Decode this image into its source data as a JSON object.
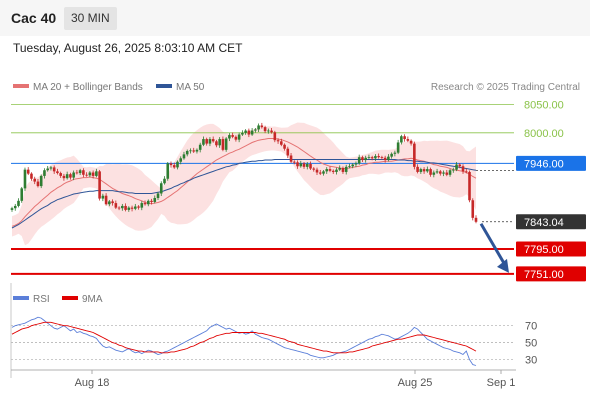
{
  "header": {
    "instrument": "Cac 40",
    "interval": "30 MIN",
    "datetime": "Tuesday, August 26, 2025 8:03:10 AM CET"
  },
  "legend": {
    "ma20_label": "MA 20 + Bollinger Bands",
    "ma50_label": "MA 50",
    "source": "Research © 2025 Trading Central",
    "rsi_label": "RSI",
    "rsi_ma_label": "9MA"
  },
  "colors": {
    "up_candle": "#2e7d32",
    "down_candle": "#c62828",
    "ma20": "#e57373",
    "ma50": "#2f5597",
    "band_fill": "#fcdcdc",
    "resistance": "#8bc34a",
    "pivot": "#1a73e8",
    "support": "#e00000",
    "current": "#333333",
    "arrow": "#2f5597",
    "rsi": "#5b7fd9",
    "rsi_ma": "#e00000"
  },
  "chart_data": [
    {
      "type": "candlestick",
      "panel": "price",
      "x_labels": [
        "Aug 18",
        "Aug 25",
        "Sep 1"
      ],
      "ylim": [
        7735,
        8065
      ],
      "levels": [
        {
          "label": "8050.00",
          "value": 8050,
          "kind": "resistance"
        },
        {
          "label": "8000.00",
          "value": 8000,
          "kind": "resistance"
        },
        {
          "label": "7946.00",
          "value": 7946,
          "kind": "pivot"
        },
        {
          "label": "7843.04",
          "value": 7843.04,
          "kind": "current"
        },
        {
          "label": "7795.00",
          "value": 7795,
          "kind": "support"
        },
        {
          "label": "7751.00",
          "value": 7751,
          "kind": "support"
        }
      ],
      "close": [
        7867,
        7871,
        7880,
        7902,
        7935,
        7928,
        7919,
        7914,
        7906,
        7924,
        7934,
        7937,
        7939,
        7932,
        7929,
        7924,
        7920,
        7927,
        7921,
        7930,
        7929,
        7934,
        7926,
        7925,
        7930,
        7924,
        7932,
        7884,
        7889,
        7874,
        7879,
        7876,
        7868,
        7867,
        7871,
        7864,
        7868,
        7866,
        7870,
        7868,
        7876,
        7874,
        7880,
        7878,
        7885,
        7893,
        7911,
        7919,
        7946,
        7943,
        7939,
        7949,
        7955,
        7962,
        7968,
        7969,
        7967,
        7970,
        7979,
        7989,
        7981,
        7989,
        7985,
        7978,
        7989,
        7970,
        7990,
        7996,
        7993,
        7988,
        7997,
        8000,
        8004,
        7997,
        8004,
        8006,
        8013,
        8010,
        8003,
        8004,
        8001,
        7987,
        7985,
        7979,
        7972,
        7960,
        7949,
        7948,
        7941,
        7946,
        7940,
        7945,
        7937,
        7935,
        7930,
        7928,
        7932,
        7936,
        7933,
        7931,
        7935,
        7938,
        7931,
        7940,
        7941,
        7944,
        7946,
        7957,
        7952,
        7956,
        7957,
        7955,
        7959,
        7957,
        7956,
        7952,
        7958,
        7963,
        7965,
        7983,
        7994,
        7989,
        7986,
        7981,
        7940,
        7931,
        7936,
        7932,
        7936,
        7926,
        7930,
        7932,
        7928,
        7930,
        7926,
        7934,
        7935,
        7944,
        7941,
        7932,
        7931,
        7881,
        7850,
        7843
      ],
      "series": [
        {
          "name": "MA 20 + Bollinger Bands",
          "values": [
            7835,
            7837,
            7840,
            7845,
            7852,
            7858,
            7864,
            7870,
            7875,
            7880,
            7885,
            7890,
            7895,
            7899,
            7903,
            7906,
            7910,
            7913,
            7915,
            7918,
            7919,
            7920,
            7921,
            7921,
            7922,
            7921,
            7920,
            7918,
            7914,
            7910,
            7906,
            7902,
            7899,
            7896,
            7893,
            7891,
            7889,
            7887,
            7884,
            7882,
            7880,
            7877,
            7876,
            7875,
            7876,
            7877,
            7879,
            7882,
            7886,
            7890,
            7894,
            7898,
            7903,
            7908,
            7913,
            7918,
            7923,
            7928,
            7932,
            7936,
            7940,
            7944,
            7948,
            7952,
            7955,
            7958,
            7961,
            7964,
            7966,
            7969,
            7971,
            7974,
            7977,
            7980,
            7983,
            7985,
            7987,
            7988,
            7989,
            7990,
            7990,
            7990,
            7989,
            7988,
            7986,
            7984,
            7981,
            7978,
            7975,
            7971,
            7967,
            7963,
            7959,
            7955,
            7952,
            7948,
            7945,
            7943,
            7941,
            7940,
            7939,
            7938,
            7937,
            7937,
            7938,
            7939,
            7940,
            7941,
            7943,
            7944,
            7946,
            7947,
            7948,
            7948,
            7949,
            7950,
            7950,
            7950,
            7951,
            7952,
            7953,
            7954,
            7954,
            7955,
            7954,
            7952,
            7951,
            7950,
            7948,
            7946,
            7944,
            7943,
            7941,
            7940,
            7939,
            7937,
            7935,
            7934,
            7933,
            7932,
            7930,
            7927,
            7923,
            7920
          ]
        },
        {
          "name": "MA 50",
          "values": [
            7832,
            7835,
            7838,
            7842,
            7846,
            7850,
            7854,
            7858,
            7862,
            7866,
            7869,
            7872,
            7876,
            7879,
            7882,
            7884,
            7886,
            7888,
            7890,
            7892,
            7893,
            7894,
            7895,
            7896,
            7897,
            7897,
            7898,
            7898,
            7898,
            7898,
            7898,
            7898,
            7897,
            7896,
            7896,
            7895,
            7894,
            7894,
            7893,
            7893,
            7893,
            7893,
            7893,
            7893,
            7894,
            7895,
            7896,
            7898,
            7900,
            7902,
            7905,
            7907,
            7910,
            7912,
            7915,
            7917,
            7920,
            7922,
            7924,
            7926,
            7928,
            7930,
            7932,
            7934,
            7936,
            7938,
            7940,
            7941,
            7943,
            7944,
            7946,
            7947,
            7948,
            7949,
            7950,
            7950,
            7951,
            7951,
            7952,
            7952,
            7952,
            7953,
            7953,
            7953,
            7953,
            7953,
            7953,
            7953,
            7953,
            7953,
            7953,
            7953,
            7953,
            7953,
            7953,
            7953,
            7953,
            7953,
            7953,
            7953,
            7953,
            7953,
            7953,
            7953,
            7953,
            7953,
            7953,
            7953,
            7953,
            7953,
            7953,
            7953,
            7953,
            7953,
            7953,
            7953,
            7953,
            7953,
            7953,
            7952,
            7952,
            7952,
            7951,
            7951,
            7950,
            7950,
            7949,
            7949,
            7948,
            7947,
            7947,
            7946,
            7945,
            7944,
            7943,
            7942,
            7941,
            7940,
            7939,
            7938,
            7937,
            7936,
            7935,
            7934
          ]
        }
      ]
    },
    {
      "type": "line",
      "panel": "rsi",
      "ylim": [
        20,
        85
      ],
      "y_ticks": [
        30,
        50,
        70
      ],
      "series": [
        {
          "name": "RSI",
          "values": [
            68,
            70,
            71,
            72,
            73,
            75,
            77,
            78,
            80,
            79,
            76,
            73,
            70,
            67,
            66,
            68,
            70,
            67,
            64,
            66,
            62,
            63,
            61,
            60,
            58,
            57,
            55,
            50,
            46,
            44,
            45,
            43,
            41,
            40,
            39,
            41,
            43,
            40,
            38,
            39,
            37,
            39,
            41,
            40,
            38,
            36,
            37,
            39,
            40,
            42,
            44,
            46,
            48,
            50,
            52,
            54,
            56,
            58,
            60,
            62,
            64,
            68,
            70,
            72,
            70,
            68,
            66,
            67,
            65,
            63,
            61,
            62,
            60,
            61,
            64,
            60,
            58,
            56,
            55,
            54,
            52,
            50,
            48,
            46,
            44,
            43,
            42,
            41,
            40,
            39,
            38,
            37,
            35,
            34,
            33,
            32,
            32,
            33,
            34,
            35,
            37,
            38,
            39,
            40,
            42,
            44,
            46,
            48,
            50,
            52,
            54,
            55,
            57,
            58,
            60,
            59,
            58,
            56,
            54,
            55,
            57,
            59,
            61,
            64,
            68,
            66,
            62,
            58,
            54,
            52,
            50,
            48,
            46,
            44,
            43,
            42,
            40,
            39,
            38,
            36,
            40,
            30,
            24,
            23
          ]
        },
        {
          "name": "9MA",
          "values": [
            60,
            62,
            64,
            66,
            67,
            68,
            70,
            71,
            72,
            73,
            74,
            74,
            74,
            73,
            72,
            71,
            70,
            70,
            69,
            68,
            67,
            66,
            65,
            64,
            63,
            62,
            60,
            58,
            56,
            54,
            52,
            50,
            49,
            47,
            46,
            44,
            43,
            42,
            41,
            40,
            40,
            39,
            39,
            39,
            39,
            39,
            38,
            38,
            38,
            39,
            39,
            40,
            41,
            42,
            43,
            45,
            46,
            48,
            50,
            51,
            53,
            55,
            56,
            58,
            59,
            60,
            61,
            61,
            62,
            62,
            62,
            62,
            62,
            62,
            62,
            62,
            61,
            61,
            60,
            59,
            58,
            57,
            56,
            55,
            54,
            52,
            51,
            50,
            48,
            47,
            46,
            45,
            44,
            43,
            42,
            41,
            40,
            40,
            39,
            38,
            38,
            38,
            38,
            38,
            39,
            39,
            40,
            41,
            42,
            43,
            44,
            46,
            47,
            48,
            49,
            50,
            51,
            52,
            53,
            54,
            54,
            55,
            56,
            57,
            58,
            59,
            59,
            59,
            58,
            57,
            56,
            55,
            54,
            53,
            52,
            51,
            50,
            49,
            48,
            47,
            46,
            44,
            42,
            40
          ]
        }
      ]
    }
  ]
}
